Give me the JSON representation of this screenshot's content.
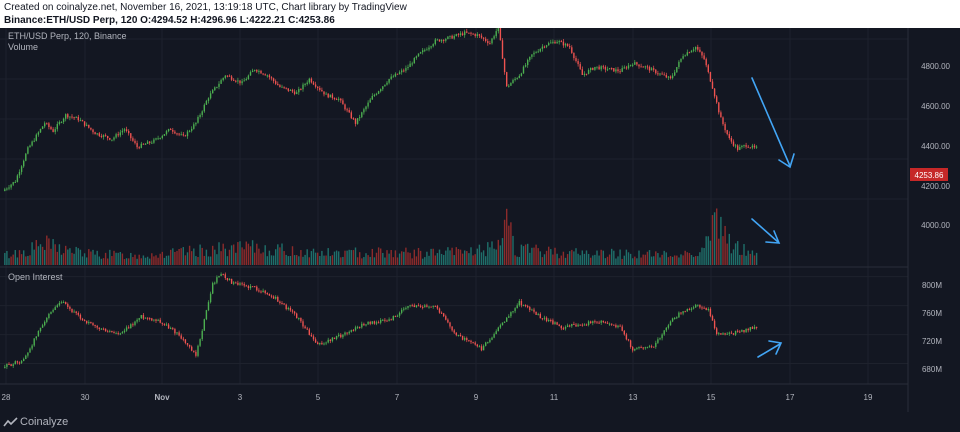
{
  "header": {
    "created": "Created on coinalyze.net, November 16, 2021, 13:19:18 UTC, Chart library by TradingView",
    "ohlc_label": "Binance:ETH/USD Perp, 120",
    "open": "O:4294.52",
    "high": "H:4296.96",
    "low": "L:4222.21",
    "close": "C:4253.86"
  },
  "footer": {
    "brand": "Coinalyze"
  },
  "colors": {
    "up": "#26a69a",
    "up_bright": "#4caf50",
    "down": "#ef5350",
    "down_dark": "#b71c1c",
    "annotation": "#42a5f5",
    "bg": "#131722",
    "grid": "#1e222d",
    "axis_text": "#b2b5be",
    "last_price_bg": "#c62828"
  },
  "chart_data": [
    {
      "type": "candlestick",
      "title": "ETH/USD Perp, 120, Binance",
      "subtitle": "Volume",
      "x_ticks": [
        "28",
        "30",
        "Nov",
        "3",
        "5",
        "7",
        "9",
        "11",
        "13",
        "15",
        "17",
        "19"
      ],
      "y_ticks": [
        "4000.00",
        "4200.00",
        "4400.00",
        "4600.00",
        "4800.00"
      ],
      "ylim": [
        3800,
        5000
      ],
      "last_price": "4253.86",
      "price_path": [
        [
          0,
          4040
        ],
        [
          6,
          4090
        ],
        [
          12,
          4250
        ],
        [
          20,
          4380
        ],
        [
          24,
          4340
        ],
        [
          30,
          4420
        ],
        [
          36,
          4400
        ],
        [
          44,
          4330
        ],
        [
          52,
          4300
        ],
        [
          58,
          4350
        ],
        [
          64,
          4260
        ],
        [
          72,
          4290
        ],
        [
          80,
          4350
        ],
        [
          86,
          4310
        ],
        [
          92,
          4380
        ],
        [
          98,
          4510
        ],
        [
          106,
          4620
        ],
        [
          114,
          4580
        ],
        [
          120,
          4650
        ],
        [
          126,
          4620
        ],
        [
          132,
          4560
        ],
        [
          140,
          4530
        ],
        [
          146,
          4600
        ],
        [
          154,
          4520
        ],
        [
          160,
          4500
        ],
        [
          168,
          4380
        ],
        [
          176,
          4510
        ],
        [
          184,
          4600
        ],
        [
          192,
          4650
        ],
        [
          198,
          4720
        ],
        [
          206,
          4790
        ],
        [
          214,
          4810
        ],
        [
          220,
          4830
        ],
        [
          226,
          4820
        ],
        [
          232,
          4780
        ],
        [
          236,
          4860
        ],
        [
          240,
          4560
        ],
        [
          246,
          4620
        ],
        [
          252,
          4720
        ],
        [
          258,
          4770
        ],
        [
          264,
          4790
        ],
        [
          270,
          4760
        ],
        [
          276,
          4620
        ],
        [
          282,
          4660
        ],
        [
          288,
          4650
        ],
        [
          294,
          4640
        ],
        [
          300,
          4680
        ],
        [
          306,
          4660
        ],
        [
          312,
          4630
        ],
        [
          318,
          4600
        ],
        [
          324,
          4720
        ],
        [
          330,
          4760
        ],
        [
          334,
          4700
        ],
        [
          338,
          4560
        ],
        [
          342,
          4400
        ],
        [
          346,
          4300
        ],
        [
          350,
          4250
        ],
        [
          354,
          4270
        ],
        [
          358,
          4254
        ]
      ],
      "volume_path": [
        [
          0,
          25
        ],
        [
          10,
          35
        ],
        [
          20,
          55
        ],
        [
          30,
          40
        ],
        [
          40,
          30
        ],
        [
          60,
          25
        ],
        [
          80,
          30
        ],
        [
          100,
          40
        ],
        [
          120,
          45
        ],
        [
          140,
          35
        ],
        [
          160,
          30
        ],
        [
          180,
          35
        ],
        [
          200,
          30
        ],
        [
          220,
          35
        ],
        [
          236,
          45
        ],
        [
          240,
          150
        ],
        [
          244,
          40
        ],
        [
          260,
          35
        ],
        [
          280,
          30
        ],
        [
          300,
          30
        ],
        [
          320,
          25
        ],
        [
          334,
          40
        ],
        [
          338,
          120
        ],
        [
          342,
          90
        ],
        [
          346,
          60
        ],
        [
          350,
          45
        ],
        [
          358,
          30
        ]
      ],
      "volume_max": 150
    },
    {
      "type": "candlestick",
      "title": "Open Interest",
      "y_ticks": [
        "680M",
        "720M",
        "760M",
        "800M"
      ],
      "ylim": [
        660,
        812
      ],
      "oi_path": [
        [
          0,
          675
        ],
        [
          10,
          685
        ],
        [
          20,
          740
        ],
        [
          28,
          765
        ],
        [
          36,
          745
        ],
        [
          44,
          730
        ],
        [
          56,
          720
        ],
        [
          66,
          745
        ],
        [
          74,
          740
        ],
        [
          84,
          720
        ],
        [
          92,
          690
        ],
        [
          100,
          790
        ],
        [
          104,
          805
        ],
        [
          110,
          790
        ],
        [
          120,
          785
        ],
        [
          130,
          770
        ],
        [
          140,
          745
        ],
        [
          150,
          705
        ],
        [
          162,
          720
        ],
        [
          172,
          735
        ],
        [
          184,
          740
        ],
        [
          194,
          760
        ],
        [
          206,
          760
        ],
        [
          216,
          720
        ],
        [
          228,
          700
        ],
        [
          238,
          735
        ],
        [
          246,
          765
        ],
        [
          256,
          745
        ],
        [
          266,
          730
        ],
        [
          276,
          735
        ],
        [
          286,
          738
        ],
        [
          294,
          730
        ],
        [
          300,
          700
        ],
        [
          310,
          705
        ],
        [
          320,
          745
        ],
        [
          330,
          760
        ],
        [
          336,
          755
        ],
        [
          340,
          720
        ],
        [
          348,
          722
        ],
        [
          358,
          730
        ]
      ]
    }
  ]
}
